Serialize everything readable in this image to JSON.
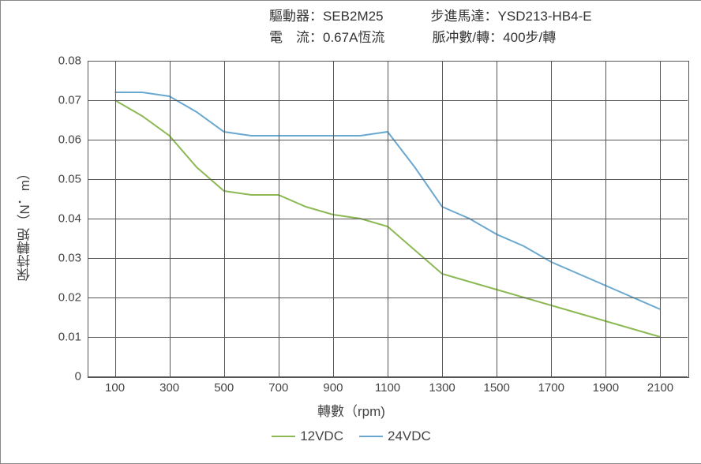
{
  "header": {
    "driver_label": "驅動器：",
    "driver_value": "SEB2M25",
    "motor_label": "步進馬達：",
    "motor_value": "YSD213-HB4-E",
    "current_label": "電　流：",
    "current_value": "0.67A恆流",
    "pulse_label": "脈冲數/轉：",
    "pulse_value": "400步/轉"
  },
  "chart": {
    "type": "line",
    "x_axis_title": "轉數（rpm)",
    "y_axis_title": "保持轉矩（N．m）",
    "xlim": [
      0,
      2200
    ],
    "ylim": [
      0,
      0.08
    ],
    "xticks": [
      100,
      300,
      500,
      700,
      900,
      1100,
      1300,
      1500,
      1700,
      1900,
      2100
    ],
    "yticks": [
      0,
      0.01,
      0.02,
      0.03,
      0.04,
      0.05,
      0.06,
      0.07,
      0.08
    ],
    "ytick_labels": [
      "0",
      "0.01",
      "0.02",
      "0.03",
      "0.04",
      "0.05",
      "0.06",
      "0.07",
      "0.08"
    ],
    "grid_color": "#555555",
    "background_color": "#ffffff",
    "axis_fontsize": 15,
    "title_fontsize": 17,
    "line_width": 2,
    "series": [
      {
        "name": "12VDC",
        "color": "#8cb954",
        "points": [
          [
            100,
            0.07
          ],
          [
            200,
            0.066
          ],
          [
            300,
            0.061
          ],
          [
            400,
            0.053
          ],
          [
            500,
            0.047
          ],
          [
            600,
            0.046
          ],
          [
            700,
            0.046
          ],
          [
            800,
            0.043
          ],
          [
            900,
            0.041
          ],
          [
            1000,
            0.04
          ],
          [
            1100,
            0.038
          ],
          [
            1200,
            0.032
          ],
          [
            1300,
            0.026
          ],
          [
            1400,
            0.024
          ],
          [
            1500,
            0.022
          ],
          [
            1600,
            0.02
          ],
          [
            1700,
            0.018
          ],
          [
            1800,
            0.016
          ],
          [
            1900,
            0.014
          ],
          [
            2000,
            0.012
          ],
          [
            2100,
            0.01
          ]
        ]
      },
      {
        "name": "24VDC",
        "color": "#6ba8cf",
        "points": [
          [
            100,
            0.072
          ],
          [
            200,
            0.072
          ],
          [
            300,
            0.071
          ],
          [
            400,
            0.067
          ],
          [
            500,
            0.062
          ],
          [
            600,
            0.061
          ],
          [
            700,
            0.061
          ],
          [
            800,
            0.061
          ],
          [
            900,
            0.061
          ],
          [
            1000,
            0.061
          ],
          [
            1100,
            0.062
          ],
          [
            1200,
            0.053
          ],
          [
            1300,
            0.043
          ],
          [
            1400,
            0.04
          ],
          [
            1500,
            0.036
          ],
          [
            1600,
            0.033
          ],
          [
            1700,
            0.029
          ],
          [
            1800,
            0.026
          ],
          [
            1900,
            0.023
          ],
          [
            2000,
            0.02
          ],
          [
            2100,
            0.017
          ]
        ]
      }
    ]
  }
}
